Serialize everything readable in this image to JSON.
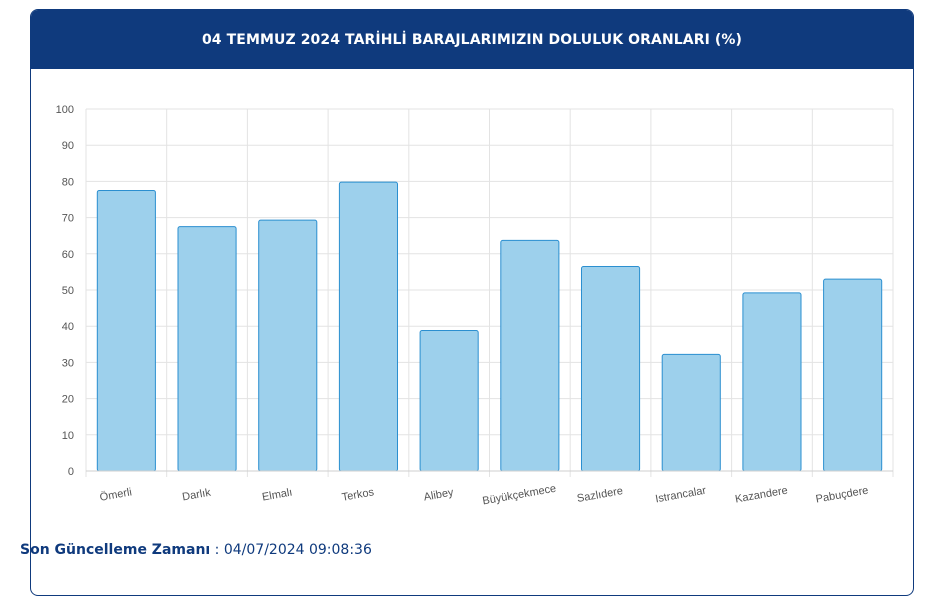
{
  "header": {
    "title": "04 TEMMUZ 2024 TARİHLİ BARAJLARIMIZIN DOLULUK ORANLARI (%)"
  },
  "footer": {
    "label": "Son Güncelleme Zamanı",
    "separator": " : ",
    "timestamp": "04/07/2024 09:08:36"
  },
  "colors": {
    "header_bg": "#0f3a7d",
    "bar_fill": "#9dd0ec",
    "bar_stroke": "#2b8fd0",
    "grid": "#e3e3e3"
  },
  "chart_data": {
    "type": "bar",
    "title": "04 TEMMUZ 2024 TARİHLİ BARAJLARIMIZIN DOLULUK ORANLARI (%)",
    "categories": [
      "Ömerli",
      "Darlık",
      "Elmalı",
      "Terkos",
      "Alibey",
      "Büyükçekmece",
      "Sazlıdere",
      "Istrancalar",
      "Kazandere",
      "Pabuçdere"
    ],
    "values": [
      77.5,
      67.5,
      69.3,
      79.8,
      38.8,
      63.7,
      56.5,
      32.2,
      49.2,
      53.0
    ],
    "ylim": [
      0,
      100
    ],
    "yticks": [
      0,
      10,
      20,
      30,
      40,
      50,
      60,
      70,
      80,
      90,
      100
    ],
    "grid": true,
    "legend": "none"
  }
}
